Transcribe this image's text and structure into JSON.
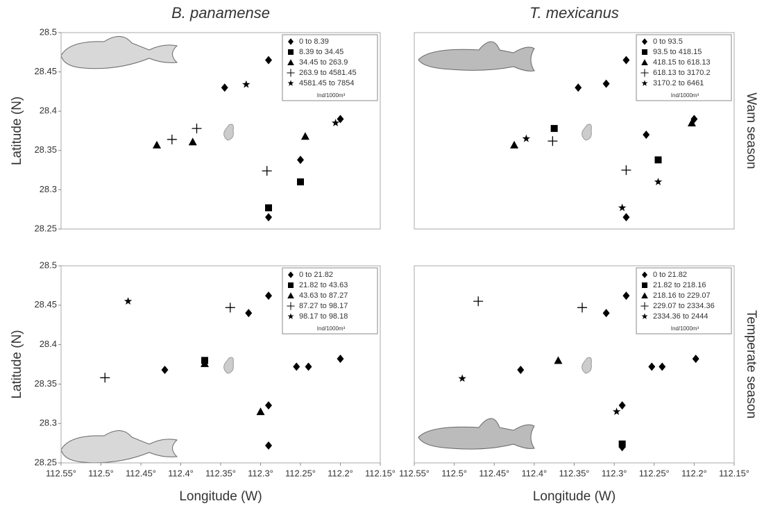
{
  "chart_data": [
    {
      "type": "scatter",
      "title": "B. panamense",
      "ylabel": "Latitude (N)",
      "xlim": [
        112.55,
        112.15
      ],
      "ylim": [
        28.25,
        28.5
      ],
      "yticks": [
        28.25,
        28.3,
        28.35,
        28.4,
        28.45,
        28.5
      ],
      "legend": "upper right",
      "legend_note": "Ind/1000m³",
      "series": [
        {
          "name": "0 to 8.39",
          "color": "#000000",
          "marker": "diamond",
          "x": [
            112.29,
            112.345,
            112.25,
            112.2,
            112.29
          ],
          "values": [
            28.465,
            28.43,
            28.338,
            28.39,
            28.265
          ]
        },
        {
          "name": "8.39 to 34.45",
          "color": "#000000",
          "marker": "square",
          "x": [
            112.29,
            112.25
          ],
          "values": [
            28.277,
            28.31
          ]
        },
        {
          "name": "34.45 to 263.9",
          "color": "#000000",
          "marker": "triangle",
          "x": [
            112.43,
            112.385,
            112.244
          ],
          "values": [
            28.357,
            28.361,
            28.368
          ]
        },
        {
          "name": "263.9 to 4581.45",
          "color": "#000000",
          "marker": "plus",
          "x": [
            112.411,
            112.38,
            112.292
          ],
          "values": [
            28.364,
            28.378,
            28.324
          ]
        },
        {
          "name": "4581.45 to 7854",
          "color": "#000000",
          "marker": "star",
          "x": [
            112.318,
            112.206
          ],
          "values": [
            28.434,
            28.385
          ]
        }
      ]
    },
    {
      "type": "scatter",
      "title": "T. mexicanus",
      "row_label": "Wam season",
      "xlim": [
        112.55,
        112.15
      ],
      "ylim": [
        28.25,
        28.5
      ],
      "legend": "upper right",
      "legend_note": "Ind/1000m³",
      "series": [
        {
          "name": "0 to 93.5",
          "color": "#000000",
          "marker": "diamond",
          "x": [
            112.285,
            112.345,
            112.31,
            112.26,
            112.2,
            112.285
          ],
          "values": [
            28.465,
            28.43,
            28.435,
            28.37,
            28.39,
            28.265
          ]
        },
        {
          "name": "93.5 to 418.15",
          "color": "#000000",
          "marker": "square",
          "x": [
            112.375,
            112.245
          ],
          "values": [
            28.378,
            28.338
          ]
        },
        {
          "name": "418.15 to 618.13",
          "color": "#000000",
          "marker": "triangle",
          "x": [
            112.425,
            112.203
          ],
          "values": [
            28.357,
            28.385
          ]
        },
        {
          "name": "618.13 to 3170.2",
          "color": "#000000",
          "marker": "plus",
          "x": [
            112.377,
            112.285
          ],
          "values": [
            28.362,
            28.325
          ]
        },
        {
          "name": "3170.2 to 6461",
          "color": "#000000",
          "marker": "star",
          "x": [
            112.41,
            112.245,
            112.29
          ],
          "values": [
            28.365,
            28.31,
            28.277
          ]
        }
      ]
    },
    {
      "type": "scatter",
      "xlabel": "Longitude (W)",
      "ylabel": "Latitude (N)",
      "xlim": [
        112.55,
        112.15
      ],
      "ylim": [
        28.25,
        28.5
      ],
      "xticks": [
        {
          "value": 112.55,
          "label": "112.55°"
        },
        {
          "value": 112.5,
          "label": "112.5°"
        },
        {
          "value": 112.45,
          "label": "112.45°"
        },
        {
          "value": 112.4,
          "label": "112.4°"
        },
        {
          "value": 112.35,
          "label": "112.35°"
        },
        {
          "value": 112.3,
          "label": "112.3°"
        },
        {
          "value": 112.25,
          "label": "112.25°"
        },
        {
          "value": 112.2,
          "label": "112.2°"
        },
        {
          "value": 112.15,
          "label": "112.15°"
        }
      ],
      "yticks": [
        28.25,
        28.3,
        28.35,
        28.4,
        28.45,
        28.5
      ],
      "legend": "upper right",
      "legend_note": "Ind/1000m³",
      "series": [
        {
          "name": "0 to 21.82",
          "color": "#000000",
          "marker": "diamond",
          "x": [
            112.29,
            112.315,
            112.42,
            112.255,
            112.24,
            112.2,
            112.29,
            112.29
          ],
          "values": [
            28.462,
            28.44,
            28.368,
            28.372,
            28.372,
            28.382,
            28.323,
            28.272
          ]
        },
        {
          "name": "21.82 to 43.63",
          "color": "#000000",
          "marker": "square",
          "x": [
            112.37
          ],
          "values": [
            28.38
          ]
        },
        {
          "name": "43.63 to 87.27",
          "color": "#000000",
          "marker": "triangle",
          "x": [
            112.37,
            112.3
          ],
          "values": [
            28.376,
            28.315
          ]
        },
        {
          "name": "87.27 to 98.17",
          "color": "#000000",
          "marker": "plus",
          "x": [
            112.495,
            112.338
          ],
          "values": [
            28.358,
            28.447
          ]
        },
        {
          "name": "98.17 to 98.18",
          "color": "#000000",
          "marker": "star",
          "x": [
            112.466
          ],
          "values": [
            28.455
          ]
        }
      ]
    },
    {
      "type": "scatter",
      "xlabel": "Longitude (W)",
      "row_label": "Temperate season",
      "xlim": [
        112.55,
        112.15
      ],
      "ylim": [
        28.25,
        28.5
      ],
      "xticks": [
        {
          "value": 112.55,
          "label": "112.55°"
        },
        {
          "value": 112.5,
          "label": "112.5°"
        },
        {
          "value": 112.45,
          "label": "112.45°"
        },
        {
          "value": 112.4,
          "label": "112.4°"
        },
        {
          "value": 112.35,
          "label": "112.35°"
        },
        {
          "value": 112.3,
          "label": "112.3°"
        },
        {
          "value": 112.25,
          "label": "112.25°"
        },
        {
          "value": 112.2,
          "label": "112.2°"
        },
        {
          "value": 112.15,
          "label": "112.15°"
        }
      ],
      "legend": "upper right",
      "legend_note": "Ind/1000m³",
      "series": [
        {
          "name": "0 to 21.82",
          "color": "#000000",
          "marker": "diamond",
          "x": [
            112.285,
            112.31,
            112.417,
            112.253,
            112.24,
            112.198,
            112.29,
            112.29
          ],
          "values": [
            28.462,
            28.44,
            28.368,
            28.372,
            28.372,
            28.382,
            28.323,
            28.27
          ]
        },
        {
          "name": "21.82 to 218.16",
          "color": "#000000",
          "marker": "square",
          "x": [
            112.29
          ],
          "values": [
            28.274
          ]
        },
        {
          "name": "218.16 to 229.07",
          "color": "#000000",
          "marker": "triangle",
          "x": [
            112.37
          ],
          "values": [
            28.38
          ]
        },
        {
          "name": "229.07 to 2334.36",
          "color": "#000000",
          "marker": "plus",
          "x": [
            112.47,
            112.34
          ],
          "values": [
            28.455,
            28.447
          ]
        },
        {
          "name": "2334.36 to 2444",
          "color": "#000000",
          "marker": "star",
          "x": [
            112.49,
            112.297
          ],
          "values": [
            28.357,
            28.315
          ]
        }
      ]
    }
  ]
}
